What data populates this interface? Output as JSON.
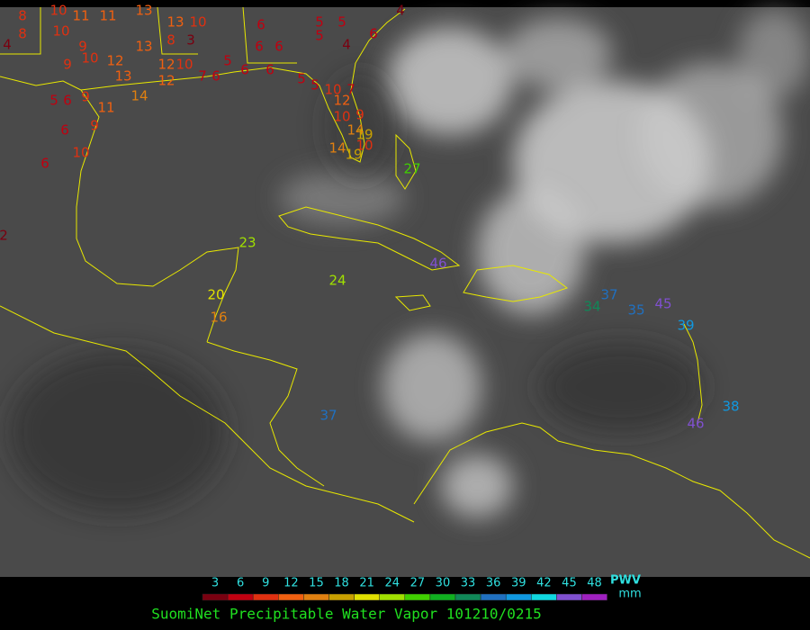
{
  "title": "SuomiNet Precipitable Water Vapor 101210/0215",
  "legend": {
    "ticks": [
      3,
      6,
      9,
      12,
      15,
      18,
      21,
      24,
      27,
      30,
      33,
      36,
      39,
      42,
      45,
      48
    ],
    "colors": [
      "#7a0010",
      "#c00010",
      "#e03010",
      "#f06010",
      "#e08010",
      "#c8a000",
      "#e0e000",
      "#a0e000",
      "#40d000",
      "#10b020",
      "#108858",
      "#2070c0",
      "#1098e0",
      "#10d8e0",
      "#8050d0",
      "#a020c0"
    ],
    "unit_top": "PWV",
    "unit_bottom": "mm"
  },
  "stations": [
    8,
    10,
    11,
    11,
    13,
    13,
    10,
    6,
    5,
    5,
    4,
    4,
    8,
    10,
    9,
    13,
    8,
    3,
    6,
    6,
    5,
    4,
    6,
    9,
    10,
    12,
    13,
    12,
    10,
    5,
    6,
    6,
    7,
    6,
    5,
    5,
    10,
    7,
    5,
    6,
    9,
    14,
    12,
    11,
    12,
    10,
    9,
    9,
    6,
    14,
    19,
    14,
    10,
    19,
    10,
    6,
    27,
    2,
    23,
    24,
    46,
    20,
    16,
    37,
    34,
    35,
    45,
    39,
    37,
    38,
    46
  ]
}
